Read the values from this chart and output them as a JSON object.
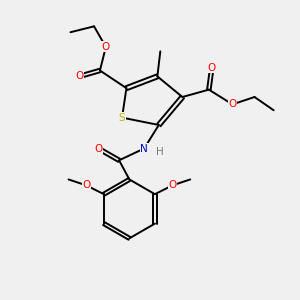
{
  "bg_color": "#f0f0f0",
  "atom_colors": {
    "C": "#000000",
    "H": "#7a7a7a",
    "O": "#ff0000",
    "N": "#0000cc",
    "S": "#b8b800"
  },
  "bond_color": "#000000",
  "figsize": [
    3.0,
    3.0
  ],
  "dpi": 100,
  "xlim": [
    0,
    10
  ],
  "ylim": [
    0,
    10
  ],
  "font_size": 7.5
}
